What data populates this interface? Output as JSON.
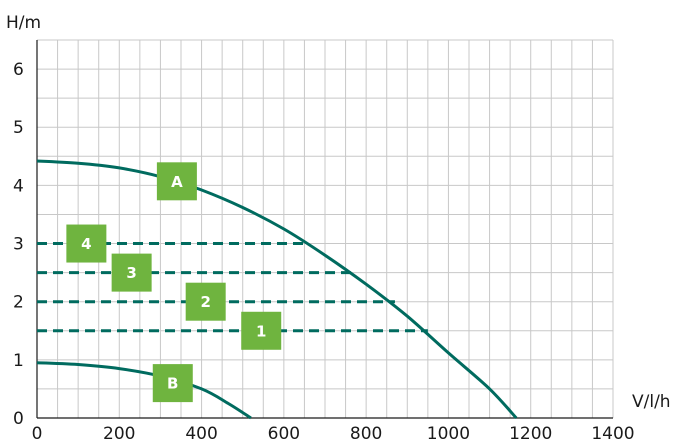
{
  "chart_data": {
    "type": "line",
    "xlabel": "V/l/h",
    "ylabel": "H/m",
    "xlim": [
      0,
      1400
    ],
    "ylim": [
      0,
      6.5
    ],
    "x_ticks": [
      "0",
      "200",
      "400",
      "600",
      "800",
      "1000",
      "1200",
      "1400"
    ],
    "y_ticks": [
      "0",
      "1",
      "2",
      "3",
      "4",
      "5",
      "6"
    ],
    "grid": true,
    "colors": {
      "curve": "#006b5f",
      "badge": "#6fb43f",
      "grid": "#c8c8c8",
      "axis": "#1a1a1a"
    },
    "curves": [
      {
        "name": "A",
        "style": "solid",
        "points": [
          [
            0,
            4.42
          ],
          [
            100,
            4.38
          ],
          [
            200,
            4.3
          ],
          [
            300,
            4.15
          ],
          [
            400,
            3.92
          ],
          [
            500,
            3.62
          ],
          [
            600,
            3.25
          ],
          [
            700,
            2.8
          ],
          [
            800,
            2.3
          ],
          [
            900,
            1.75
          ],
          [
            1000,
            1.12
          ],
          [
            1100,
            0.5
          ],
          [
            1165,
            0.0
          ]
        ],
        "label_at": [
          340,
          4.07
        ]
      },
      {
        "name": "B",
        "style": "solid",
        "points": [
          [
            0,
            0.95
          ],
          [
            100,
            0.92
          ],
          [
            200,
            0.85
          ],
          [
            300,
            0.72
          ],
          [
            400,
            0.5
          ],
          [
            465,
            0.25
          ],
          [
            520,
            0.0
          ]
        ],
        "label_at": [
          330,
          0.6
        ]
      }
    ],
    "levels": [
      {
        "name": "4",
        "style": "dashed",
        "x": [
          0,
          660
        ],
        "y": 3.0,
        "label_at": [
          120,
          3.0
        ]
      },
      {
        "name": "3",
        "style": "dashed",
        "x": [
          0,
          770
        ],
        "y": 2.5,
        "label_at": [
          230,
          2.5
        ]
      },
      {
        "name": "2",
        "style": "dashed",
        "x": [
          0,
          870
        ],
        "y": 2.0,
        "label_at": [
          410,
          2.0
        ]
      },
      {
        "name": "1",
        "style": "dashed",
        "x": [
          0,
          950
        ],
        "y": 1.5,
        "label_at": [
          545,
          1.5
        ]
      }
    ]
  }
}
